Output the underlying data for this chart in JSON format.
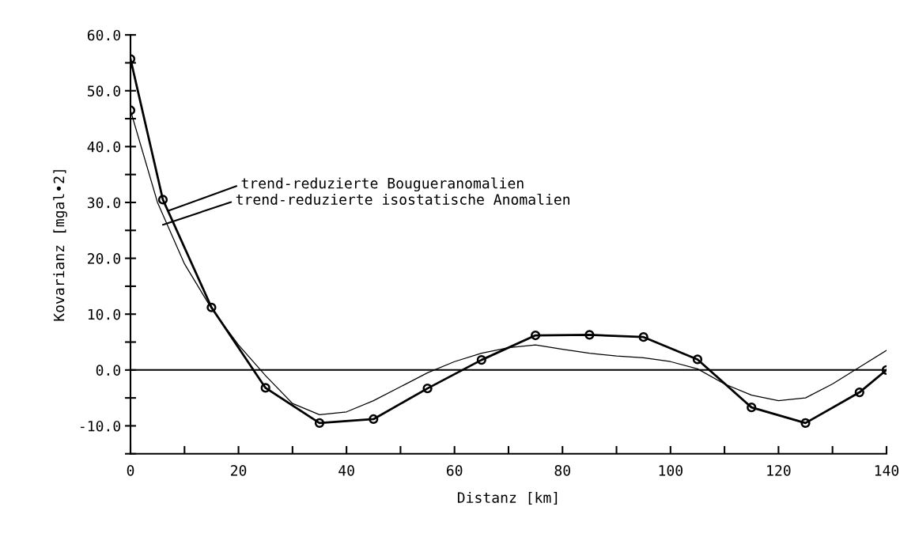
{
  "chart_data": {
    "type": "line",
    "xlabel": "Distanz [km]",
    "ylabel": "Kovarianz [mgal•2]",
    "xlim": [
      0,
      140
    ],
    "ylim": [
      -15,
      60
    ],
    "xticks": [
      0,
      {
        "value": 10,
        "label": null
      },
      20,
      {
        "value": 30,
        "label": null
      },
      40,
      {
        "value": 50,
        "label": null
      },
      60,
      {
        "value": 70,
        "label": null
      },
      80,
      {
        "value": 90,
        "label": null
      },
      100,
      {
        "value": 110,
        "label": null
      },
      120,
      {
        "value": 130,
        "label": null
      },
      140
    ],
    "yticks": [
      {
        "value": -15,
        "label": null
      },
      {
        "value": -10,
        "label": "-10.0"
      },
      {
        "value": -5,
        "label": null
      },
      {
        "value": 0,
        "label": "0.0"
      },
      {
        "value": 5,
        "label": null
      },
      {
        "value": 10,
        "label": "10.0"
      },
      {
        "value": 15,
        "label": null
      },
      {
        "value": 20,
        "label": "20.0"
      },
      {
        "value": 25,
        "label": null
      },
      {
        "value": 30,
        "label": "30.0"
      },
      {
        "value": 35,
        "label": null
      },
      {
        "value": 40,
        "label": "40.0"
      },
      {
        "value": 45,
        "label": null
      },
      {
        "value": 50,
        "label": "50.0"
      },
      {
        "value": 55,
        "label": null
      },
      {
        "value": 60,
        "label": "60.0"
      }
    ],
    "grid": false,
    "legend": false,
    "ref_lines": [
      {
        "axis": "y",
        "value": 0,
        "color": "#000000"
      }
    ],
    "series": [
      {
        "color": "#000000",
        "marker": "circle",
        "x": [
          0,
          6,
          15,
          25,
          35,
          45,
          55,
          65,
          75,
          85,
          95,
          105,
          115,
          125,
          135,
          140
        ],
        "values": [
          55.7,
          30.5,
          11.2,
          -3.2,
          -9.5,
          -8.8,
          -3.3,
          1.8,
          6.2,
          6.3,
          5.9,
          1.9,
          -6.7,
          -9.5,
          -4,
          0
        ]
      },
      {
        "color": "#000000",
        "marker": "none",
        "x": [
          0,
          5,
          10,
          15,
          20,
          25,
          30,
          35,
          40,
          45,
          50,
          55,
          60,
          65,
          70,
          75,
          80,
          85,
          90,
          95,
          100,
          105,
          110,
          115,
          120,
          125,
          130,
          135,
          140
        ],
        "values": [
          46.5,
          30,
          19,
          11,
          4.5,
          -1,
          -6,
          -8,
          -7.5,
          -5.5,
          -3,
          -0.5,
          1.5,
          3,
          4,
          4.5,
          3.7,
          3,
          2.5,
          2.2,
          1.5,
          0.2,
          -2.5,
          -4.5,
          -5.5,
          -5,
          -2.5,
          0.5,
          3.5
        ]
      },
      {
        "type": "scatter",
        "color": "#000000",
        "marker": "circle",
        "x": [
          0
        ],
        "values": [
          46.5
        ]
      }
    ],
    "annotations": [
      {
        "text": "trend-reduzierte Bougueranomalien",
        "x": 7,
        "y": 28.5
      },
      {
        "text": "trend-reduzierte isostatische Anomalien",
        "x": 6,
        "y": 26
      }
    ]
  }
}
